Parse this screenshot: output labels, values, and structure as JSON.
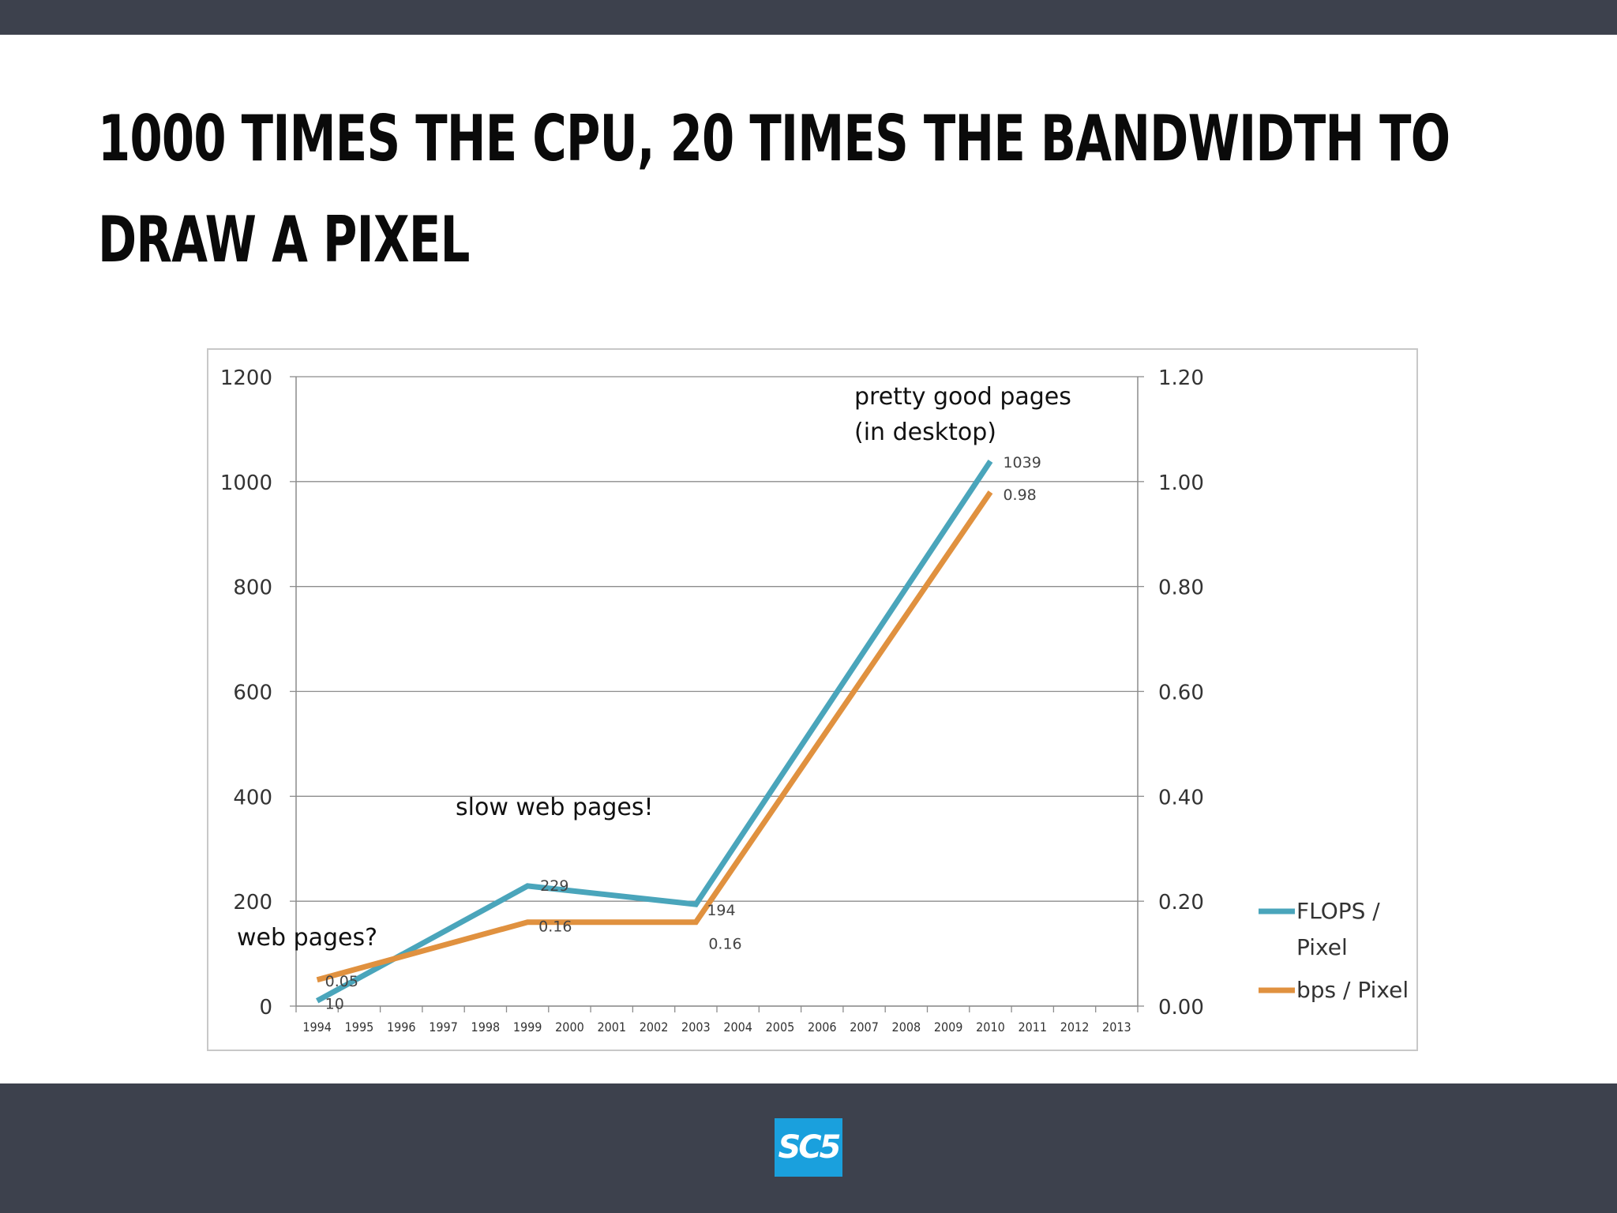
{
  "slide": {
    "title": "1000 times the CPU, 20 times the bandwidth to draw a pixel",
    "logo_text": "SC5"
  },
  "colors": {
    "flops": "#4aa5bb",
    "bps": "#e0913f",
    "bars": "#3d414d",
    "logo": "#1aa0dd"
  },
  "chart_data": {
    "type": "line",
    "categories": [
      "1994",
      "1995",
      "1996",
      "1997",
      "1998",
      "1999",
      "2000",
      "2001",
      "2002",
      "2003",
      "2004",
      "2005",
      "2006",
      "2007",
      "2008",
      "2009",
      "2010",
      "2011",
      "2012",
      "2013"
    ],
    "y_left": {
      "min": 0,
      "max": 1200,
      "ticks": [
        "0",
        "200",
        "400",
        "600",
        "800",
        "1000",
        "1200"
      ]
    },
    "y_right": {
      "min": 0,
      "max": 1.2,
      "ticks": [
        "0.00",
        "0.20",
        "0.40",
        "0.60",
        "0.80",
        "1.00",
        "1.20"
      ]
    },
    "grid": true,
    "legend_position": "right",
    "series": [
      {
        "name": "FLOPS / Pixel",
        "axis": "left",
        "points": [
          {
            "x": "1994",
            "y": 10,
            "label": "10"
          },
          {
            "x": "1999",
            "y": 229,
            "label": "229"
          },
          {
            "x": "2003",
            "y": 194,
            "label": "194"
          },
          {
            "x": "2010",
            "y": 1039,
            "label": "1039"
          }
        ]
      },
      {
        "name": "bps / Pixel",
        "axis": "right",
        "points": [
          {
            "x": "1994",
            "y": 0.05,
            "label": "0.05"
          },
          {
            "x": "1999",
            "y": 0.16,
            "label": "0.16"
          },
          {
            "x": "2003",
            "y": 0.16,
            "label": "0.16"
          },
          {
            "x": "2010",
            "y": 0.98,
            "label": "0.98"
          }
        ]
      }
    ],
    "annotations": [
      {
        "text": "web pages?",
        "x": "1994",
        "y": 120
      },
      {
        "text": "slow web pages!",
        "x": "2000",
        "y": 370
      },
      {
        "text": "pretty  good pages",
        "x": "2008",
        "y": 1140
      },
      {
        "text": "(in desktop)",
        "x": "2008",
        "y": 1072
      }
    ]
  }
}
